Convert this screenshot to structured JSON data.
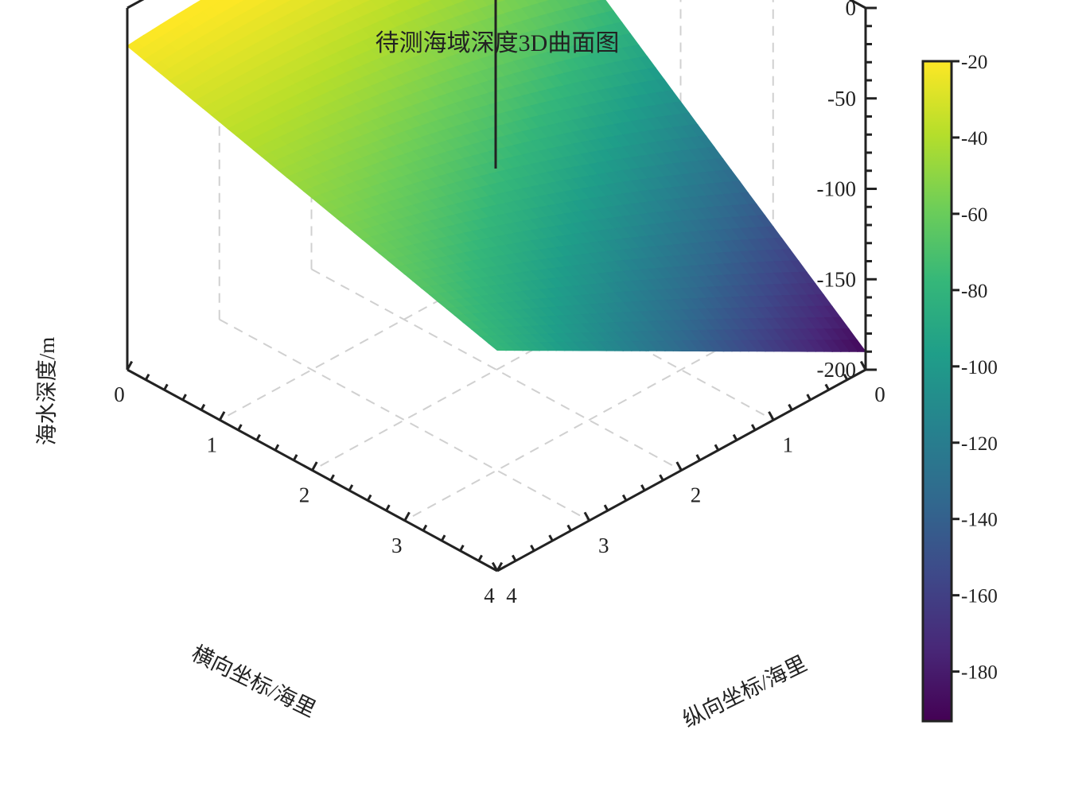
{
  "chart_data": {
    "type": "surface3d",
    "title": "待测海域深度3D曲面图",
    "xlabel": "横向坐标/海里",
    "ylabel": "纵向坐标/海里",
    "zlabel": "海水深度/m",
    "x_range": [
      0,
      4
    ],
    "y_range": [
      0,
      4
    ],
    "z_range": [
      -200,
      0
    ],
    "x_ticks": [
      "0",
      "1",
      "2",
      "3",
      "4"
    ],
    "y_ticks": [
      "0",
      "1",
      "2",
      "3",
      "4"
    ],
    "z_ticks": [
      "0",
      "-50",
      "-100",
      "-150",
      "-200"
    ],
    "corner_values": [
      {
        "x": 0,
        "y": 0,
        "z": -25
      },
      {
        "x": 0,
        "y": 4,
        "z": -21
      },
      {
        "x": 4,
        "y": 4,
        "z": -78
      },
      {
        "x": 4,
        "y": 0,
        "z": -190
      }
    ],
    "colormap": "viridis",
    "colorbar": {
      "range": [
        -193,
        -20
      ],
      "ticks": [
        "-20",
        "-40",
        "-60",
        "-80",
        "-100",
        "-120",
        "-140",
        "-160",
        "-180"
      ],
      "colors": [
        "#440154",
        "#482878",
        "#3e4989",
        "#31688e",
        "#26828e",
        "#1f9e89",
        "#35b779",
        "#6ece58",
        "#b5de2b",
        "#fde725"
      ]
    },
    "grid": true
  }
}
